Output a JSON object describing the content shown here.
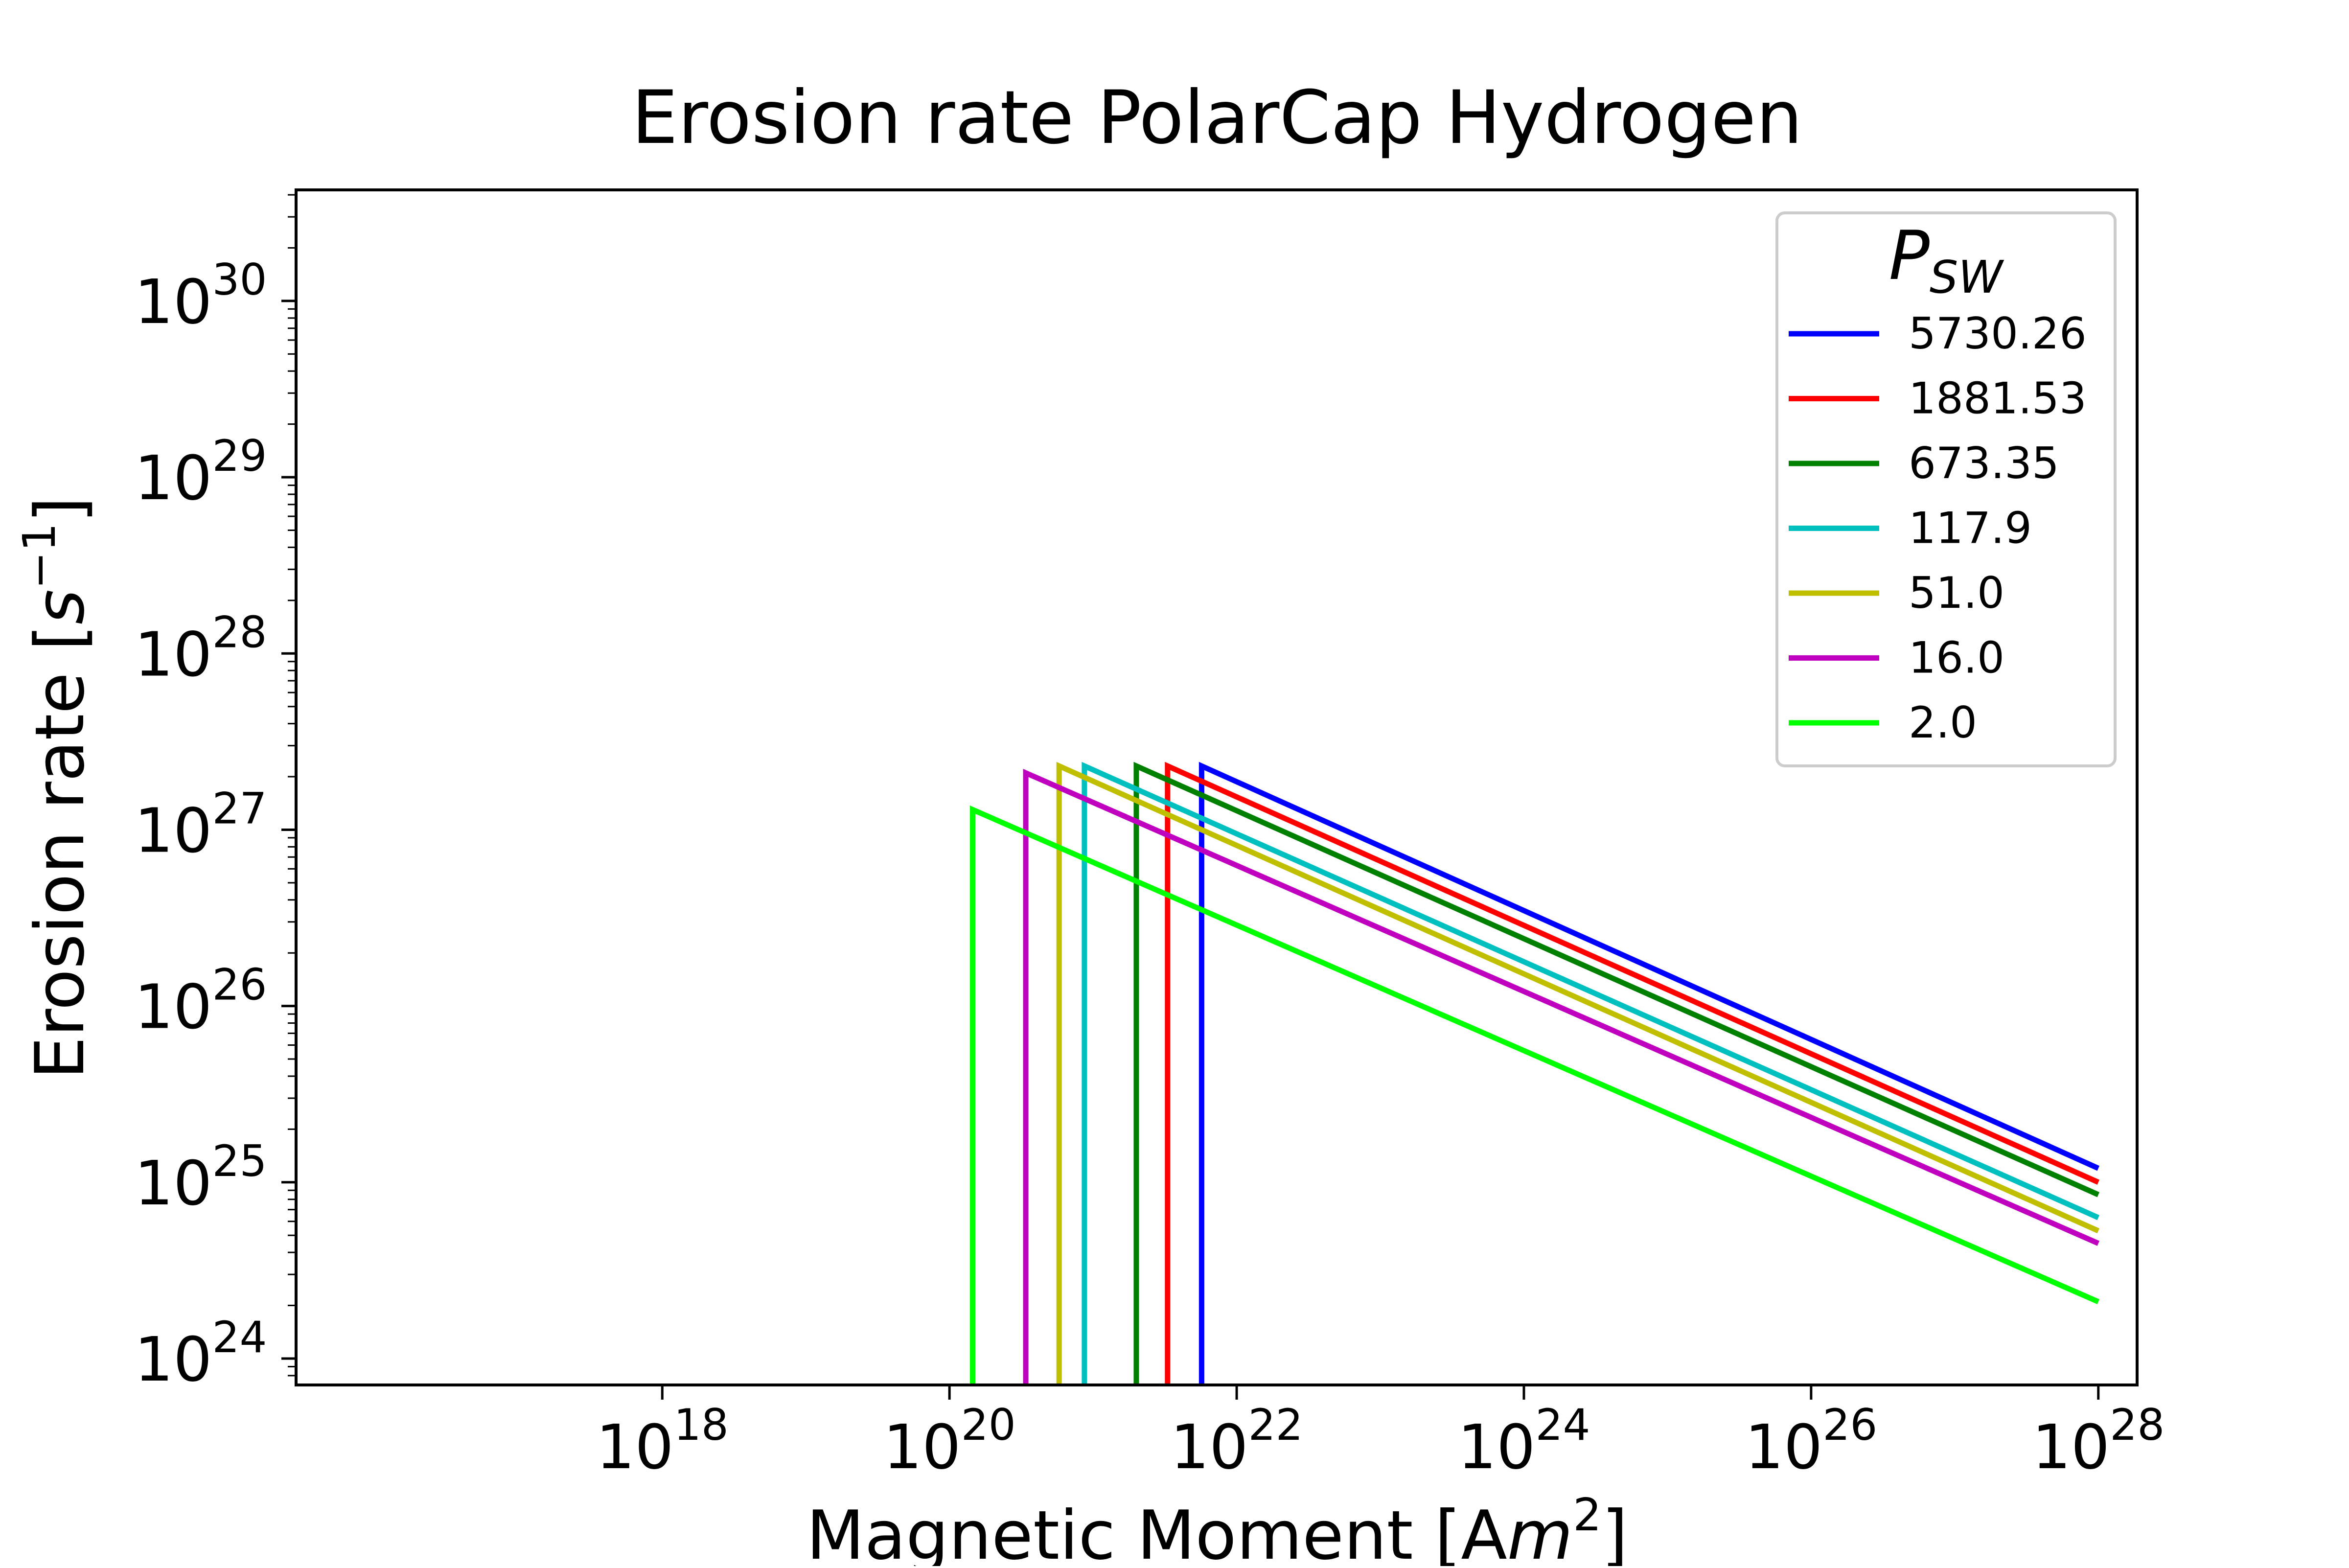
{
  "chart_data": {
    "type": "line",
    "title": "Erosion rate PolarCap Hydrogen",
    "xlabel": "Magnetic Moment [Am²]",
    "xlabel_parts": {
      "pre": "Magnetic Moment [A",
      "var": "m",
      "sup": "2",
      "post": "]"
    },
    "ylabel": "Erosion rate [s⁻¹]",
    "ylabel_parts": {
      "pre": "Erosion rate [",
      "var": "s",
      "sup": "−1",
      "post": "]"
    },
    "x_scale": "log",
    "y_scale": "log",
    "xlim": [
      1e+16,
      1e+28
    ],
    "ylim": [
      1e+24,
      1e+30
    ],
    "x_ticks": [
      {
        "base": "10",
        "exp": "18",
        "value": 1e+18
      },
      {
        "base": "10",
        "exp": "20",
        "value": 1e+20
      },
      {
        "base": "10",
        "exp": "22",
        "value": 1e+22
      },
      {
        "base": "10",
        "exp": "24",
        "value": 1e+24
      },
      {
        "base": "10",
        "exp": "26",
        "value": 1e+26
      },
      {
        "base": "10",
        "exp": "28",
        "value": 1e+28
      }
    ],
    "y_ticks": [
      {
        "base": "10",
        "exp": "24",
        "value": 1e+24
      },
      {
        "base": "10",
        "exp": "25",
        "value": 1e+25
      },
      {
        "base": "10",
        "exp": "26",
        "value": 1e+26
      },
      {
        "base": "10",
        "exp": "27",
        "value": 1e+27
      },
      {
        "base": "10",
        "exp": "28",
        "value": 1e+28
      },
      {
        "base": "10",
        "exp": "29",
        "value": 1e+29
      },
      {
        "base": "10",
        "exp": "30",
        "value": 1e+30
      }
    ],
    "grid": false,
    "legend": {
      "title_var": "P",
      "title_sub": "SW",
      "placement": "top-right"
    },
    "series": [
      {
        "name": "5730.26",
        "color": "#0000ff",
        "x": [
          5.7e+21,
          5.7e+21,
          1e+28
        ],
        "y": [
          1e+24,
          2.3e+27,
          1.2e+25
        ]
      },
      {
        "name": "1881.53",
        "color": "#ff0000",
        "x": [
          3.3e+21,
          3.3e+21,
          1e+28
        ],
        "y": [
          1e+24,
          2.3e+27,
          1e+25
        ]
      },
      {
        "name": "673.35",
        "color": "#008000",
        "x": [
          2e+21,
          2e+21,
          1e+28
        ],
        "y": [
          1e+24,
          2.3e+27,
          8.5e+24
        ]
      },
      {
        "name": "117.9",
        "color": "#00bfbf",
        "x": [
          8.7e+20,
          8.7e+20,
          1e+28
        ],
        "y": [
          1e+24,
          2.3e+27,
          6.3e+24
        ]
      },
      {
        "name": "51.0",
        "color": "#bfbf00",
        "x": [
          5.8e+20,
          5.8e+20,
          1e+28
        ],
        "y": [
          1e+24,
          2.3e+27,
          5.3e+24
        ]
      },
      {
        "name": "16.0",
        "color": "#bf00bf",
        "x": [
          3.4e+20,
          3.4e+20,
          1e+28
        ],
        "y": [
          1e+24,
          2.1e+27,
          4.5e+24
        ]
      },
      {
        "name": "2.0",
        "color": "#00ff00",
        "x": [
          1.45e+20,
          1.45e+20,
          1e+28
        ],
        "y": [
          1e+24,
          1.3e+27,
          2.1e+24
        ]
      }
    ]
  }
}
